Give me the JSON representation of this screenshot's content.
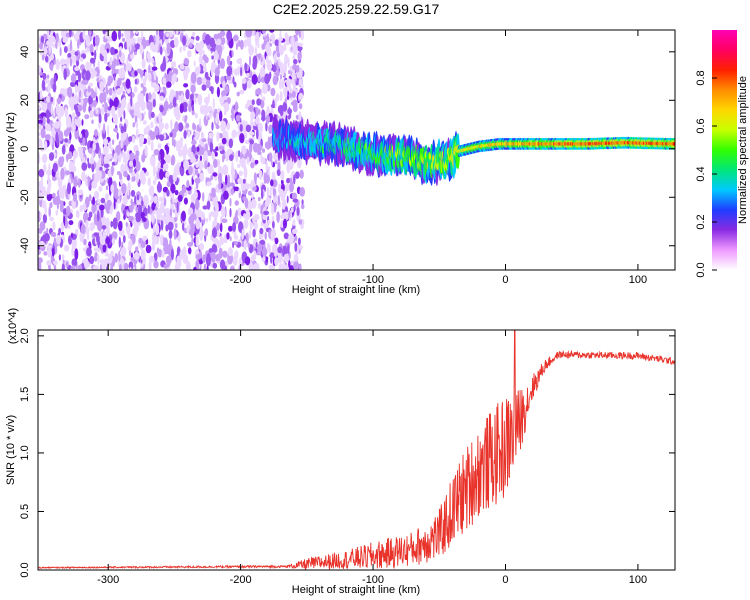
{
  "title": "C2E2.2025.259.22.59.G17",
  "chart_data": [
    {
      "type": "heatmap",
      "name": "spectrogram",
      "xlabel": "Height of straight line (km)",
      "ylabel": "Frequency (Hz)",
      "xlim": [
        -353,
        128
      ],
      "ylim": [
        -50,
        49
      ],
      "xticks": [
        -300,
        -200,
        -100,
        0,
        100
      ],
      "yticks": [
        -40,
        -20,
        0,
        20,
        40
      ],
      "colorbar": {
        "label": "Normalized spectral amplitude",
        "range": [
          0,
          1
        ],
        "ticks": [
          "0.0",
          "0.2",
          "0.4",
          "0.6",
          "0.8"
        ],
        "tick_values": [
          0.0,
          0.2,
          0.4,
          0.6,
          0.8
        ],
        "colors": [
          "#ffffff",
          "#ee99ff",
          "#8a2be2",
          "#1f3dff",
          "#00c8ff",
          "#00e67a",
          "#32ff00",
          "#c8ff00",
          "#ffd700",
          "#ff8c00",
          "#ff2000",
          "#ff0060",
          "#ff00b4"
        ]
      },
      "regions": [
        {
          "name": "noise",
          "x_range": [
            -353,
            -165
          ],
          "y_range": [
            -50,
            49
          ],
          "level": 0.1
        },
        {
          "name": "signal-track",
          "points": [
            [
              -175,
              5
            ],
            [
              -150,
              3
            ],
            [
              -130,
              2
            ],
            [
              -110,
              -1
            ],
            [
              -90,
              -3
            ],
            [
              -70,
              -4
            ],
            [
              -58,
              -6
            ],
            [
              -45,
              -5
            ],
            [
              -35,
              -1
            ],
            [
              -20,
              1
            ],
            [
              -5,
              2
            ],
            [
              20,
              2
            ],
            [
              60,
              2
            ],
            [
              90,
              2.5
            ],
            [
              128,
              2
            ]
          ],
          "level_start": 0.35,
          "level_end": 1.0
        }
      ]
    },
    {
      "type": "line",
      "name": "snr",
      "xlabel": "Height of straight line (km)",
      "ylabel": "SNR (10 * v/v)",
      "y_multiplier": "(x10^4)",
      "xlim": [
        -353,
        128
      ],
      "ylim": [
        0,
        2.05
      ],
      "xticks": [
        -300,
        -200,
        -100,
        0,
        100
      ],
      "yticks": [
        0.0,
        0.5,
        1.0,
        1.5,
        2.0
      ],
      "ytick_labels": [
        "0.0",
        "0.5",
        "1.0",
        "1.5",
        "2.0"
      ],
      "color": "#e8322a",
      "envelope": [
        {
          "x": -353,
          "base": 0.02,
          "noise": 0.005
        },
        {
          "x": -165,
          "base": 0.03,
          "noise": 0.01
        },
        {
          "x": -150,
          "base": 0.05,
          "noise": 0.05
        },
        {
          "x": -120,
          "base": 0.09,
          "noise": 0.08
        },
        {
          "x": -100,
          "base": 0.12,
          "noise": 0.12
        },
        {
          "x": -70,
          "base": 0.18,
          "noise": 0.15
        },
        {
          "x": -50,
          "base": 0.3,
          "noise": 0.22
        },
        {
          "x": -35,
          "base": 0.6,
          "noise": 0.35
        },
        {
          "x": -20,
          "base": 0.85,
          "noise": 0.4
        },
        {
          "x": 0,
          "base": 1.05,
          "noise": 0.45
        },
        {
          "x": 10,
          "base": 1.25,
          "noise": 0.3
        },
        {
          "x": 20,
          "base": 1.55,
          "noise": 0.12
        },
        {
          "x": 30,
          "base": 1.75,
          "noise": 0.05
        },
        {
          "x": 40,
          "base": 1.84,
          "noise": 0.03
        },
        {
          "x": 100,
          "base": 1.83,
          "noise": 0.03
        },
        {
          "x": 128,
          "base": 1.78,
          "noise": 0.03
        }
      ],
      "peak": {
        "x": 7,
        "y": 2.05
      }
    }
  ]
}
